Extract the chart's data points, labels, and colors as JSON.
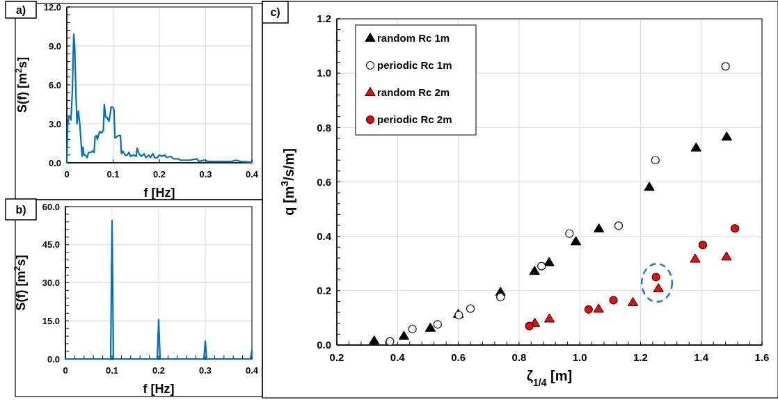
{
  "chart_data": [
    {
      "type": "line",
      "title": "a)",
      "xlabel": "f [Hz]",
      "ylabel": "S(f) [m$^{2}$s]",
      "xlim": [
        0,
        0.4
      ],
      "ylim": [
        0,
        12
      ],
      "grid": true,
      "marker": "none",
      "line_style": "solid",
      "xticks": [
        0,
        0.1,
        0.2,
        0.3,
        0.4
      ],
      "yticks": [
        {
          "value": 0,
          "label": "0.0"
        },
        {
          "value": 0.6,
          "label": null
        },
        {
          "value": 1.2,
          "label": null
        },
        {
          "value": 1.8,
          "label": null
        },
        {
          "value": 2.4,
          "label": null
        },
        {
          "value": 3,
          "label": "3.0"
        },
        {
          "value": 3.6,
          "label": null
        },
        {
          "value": 4.2,
          "label": null
        },
        {
          "value": 4.8,
          "label": null
        },
        {
          "value": 5.4,
          "label": null
        },
        {
          "value": 6,
          "label": "6.0"
        },
        {
          "value": 6.6,
          "label": null
        },
        {
          "value": 7.2,
          "label": null
        },
        {
          "value": 7.8,
          "label": null
        },
        {
          "value": 8.4,
          "label": null
        },
        {
          "value": 9,
          "label": "9.0"
        },
        {
          "value": 9.6,
          "label": null
        },
        {
          "value": 10.2,
          "label": null
        },
        {
          "value": 10.8,
          "label": null
        },
        {
          "value": 11.4,
          "label": null
        },
        {
          "value": 12,
          "label": "12.0"
        }
      ],
      "x": [
        0,
        0.002,
        0.005,
        0.008,
        0.009,
        0.012,
        0.015,
        0.017,
        0.02,
        0.022,
        0.025,
        0.028,
        0.031,
        0.033,
        0.035,
        0.037,
        0.04,
        0.044,
        0.047,
        0.052,
        0.055,
        0.059,
        0.061,
        0.064,
        0.066,
        0.069,
        0.071,
        0.075,
        0.079,
        0.081,
        0.084,
        0.087,
        0.091,
        0.094,
        0.096,
        0.099,
        0.102,
        0.104,
        0.108,
        0.112,
        0.116,
        0.118,
        0.121,
        0.126,
        0.131,
        0.134,
        0.138,
        0.144,
        0.15,
        0.152,
        0.156,
        0.161,
        0.167,
        0.171,
        0.177,
        0.181,
        0.186,
        0.19,
        0.196,
        0.2,
        0.206,
        0.212,
        0.216,
        0.224,
        0.231,
        0.241,
        0.246,
        0.256,
        0.266,
        0.281,
        0.286,
        0.296,
        0.306,
        0.326,
        0.356,
        0.366,
        0.376,
        0.4
      ],
      "series": [
        {
          "color": "#0070c0",
          "values": [
            0,
            3.0,
            3.6,
            3.5,
            3.3,
            5.5,
            9.9,
            9.0,
            5.0,
            3.0,
            4.0,
            3.0,
            1.5,
            0.5,
            1.2,
            0.6,
            0.6,
            0.4,
            0.8,
            0.8,
            0.9,
            0.8,
            2.0,
            2.1,
            1.8,
            2.2,
            2.4,
            2.3,
            2.5,
            4.5,
            3.5,
            3.5,
            3.2,
            3.8,
            4.3,
            4.3,
            4.1,
            1.9,
            2.0,
            2.1,
            2.1,
            0.7,
            0.9,
            0.6,
            0.6,
            0.8,
            0.5,
            0.6,
            0.5,
            1.1,
            0.7,
            0.5,
            0.7,
            0.4,
            0.6,
            0.4,
            0.7,
            0.4,
            0.4,
            0.6,
            0.5,
            0.6,
            0.4,
            0.5,
            0.3,
            0.3,
            0.2,
            0.2,
            0.2,
            0.3,
            0.1,
            0.2,
            0.1,
            0.1,
            0.1,
            0.2,
            0.1,
            0.05
          ]
        }
      ]
    },
    {
      "type": "line",
      "title": "b)",
      "xlabel": "f [Hz]",
      "ylabel": "S(f) [m$^{2}$s]",
      "xlim": [
        0,
        0.4
      ],
      "ylim": [
        0,
        60
      ],
      "grid": true,
      "marker": "none",
      "line_style": "solid",
      "xticks": [
        0,
        {
          "value": 0.02,
          "label": null
        },
        {
          "value": 0.04,
          "label": null
        },
        {
          "value": 0.06,
          "label": null
        },
        {
          "value": 0.08,
          "label": null
        },
        0.1,
        {
          "value": 0.12,
          "label": null
        },
        {
          "value": 0.14,
          "label": null
        },
        {
          "value": 0.16,
          "label": null
        },
        {
          "value": 0.18,
          "label": null
        },
        0.2,
        {
          "value": 0.22,
          "label": null
        },
        {
          "value": 0.24,
          "label": null
        },
        {
          "value": 0.26,
          "label": null
        },
        {
          "value": 0.28,
          "label": null
        },
        0.3,
        {
          "value": 0.32,
          "label": null
        },
        {
          "value": 0.34,
          "label": null
        },
        {
          "value": 0.36,
          "label": null
        },
        {
          "value": 0.38,
          "label": null
        },
        0.4
      ],
      "yticks": [
        {
          "value": 0,
          "label": "0.0"
        },
        {
          "value": 3,
          "label": null
        },
        {
          "value": 6,
          "label": null
        },
        {
          "value": 9,
          "label": null
        },
        {
          "value": 12,
          "label": null
        },
        {
          "value": 15,
          "label": "15.0"
        },
        {
          "value": 18,
          "label": null
        },
        {
          "value": 21,
          "label": null
        },
        {
          "value": 24,
          "label": null
        },
        {
          "value": 27,
          "label": null
        },
        {
          "value": 30,
          "label": "30.0"
        },
        {
          "value": 33,
          "label": null
        },
        {
          "value": 36,
          "label": null
        },
        {
          "value": 39,
          "label": null
        },
        {
          "value": 42,
          "label": null
        },
        {
          "value": 45,
          "label": "45.0"
        },
        {
          "value": 48,
          "label": null
        },
        {
          "value": 51,
          "label": null
        },
        {
          "value": 54,
          "label": null
        },
        {
          "value": 57,
          "label": null
        },
        {
          "value": 60,
          "label": "60.0"
        }
      ],
      "x": [
        0,
        0.097,
        0.1,
        0.103,
        0.197,
        0.2,
        0.203,
        0.297,
        0.3,
        0.303,
        0.397,
        0.4
      ],
      "series": [
        {
          "color": "#0070c0",
          "values": [
            0,
            0,
            54.5,
            0,
            0,
            15.5,
            0,
            0,
            7,
            0,
            0,
            3.5
          ]
        }
      ]
    },
    {
      "type": "scatter",
      "title": "c)",
      "xlabel": "ζ$_{1/4}$ [m]",
      "ylabel": "q [m$^{3}$/s/m]",
      "xlim": [
        0.2,
        1.6
      ],
      "ylim": [
        0,
        1.2
      ],
      "grid": true,
      "legend": "top left",
      "xticks": [
        0.2,
        {
          "value": 0.24,
          "label": null
        },
        {
          "value": 0.28,
          "label": null
        },
        {
          "value": 0.32,
          "label": null
        },
        {
          "value": 0.36,
          "label": null
        },
        0.4,
        {
          "value": 0.44,
          "label": null
        },
        {
          "value": 0.48,
          "label": null
        },
        {
          "value": 0.52,
          "label": null
        },
        {
          "value": 0.56,
          "label": null
        },
        0.6,
        {
          "value": 0.64,
          "label": null
        },
        {
          "value": 0.68,
          "label": null
        },
        {
          "value": 0.72,
          "label": null
        },
        {
          "value": 0.76,
          "label": null
        },
        0.8,
        {
          "value": 0.84,
          "label": null
        },
        {
          "value": 0.88,
          "label": null
        },
        {
          "value": 0.92,
          "label": null
        },
        {
          "value": 0.96,
          "label": null
        },
        {
          "value": 1,
          "label": "1.0"
        },
        {
          "value": 1.04,
          "label": null
        },
        {
          "value": 1.08,
          "label": null
        },
        {
          "value": 1.12,
          "label": null
        },
        {
          "value": 1.16,
          "label": null
        },
        1.2,
        {
          "value": 1.24,
          "label": null
        },
        {
          "value": 1.28,
          "label": null
        },
        {
          "value": 1.32,
          "label": null
        },
        {
          "value": 1.36,
          "label": null
        },
        1.4,
        {
          "value": 1.44,
          "label": null
        },
        {
          "value": 1.48,
          "label": null
        },
        {
          "value": 1.52,
          "label": null
        },
        {
          "value": 1.56,
          "label": null
        },
        1.6
      ],
      "yticks": [
        {
          "value": 0,
          "label": "0.0"
        },
        {
          "value": 0.04,
          "label": null
        },
        {
          "value": 0.08,
          "label": null
        },
        {
          "value": 0.12,
          "label": null
        },
        {
          "value": 0.16,
          "label": null
        },
        0.2,
        {
          "value": 0.24,
          "label": null
        },
        {
          "value": 0.28,
          "label": null
        },
        {
          "value": 0.32,
          "label": null
        },
        {
          "value": 0.36,
          "label": null
        },
        0.4,
        {
          "value": 0.44,
          "label": null
        },
        {
          "value": 0.48,
          "label": null
        },
        {
          "value": 0.52,
          "label": null
        },
        {
          "value": 0.56,
          "label": null
        },
        0.6,
        {
          "value": 0.64,
          "label": null
        },
        {
          "value": 0.68,
          "label": null
        },
        {
          "value": 0.72,
          "label": null
        },
        {
          "value": 0.76,
          "label": null
        },
        0.8,
        {
          "value": 0.84,
          "label": null
        },
        {
          "value": 0.88,
          "label": null
        },
        {
          "value": 0.92,
          "label": null
        },
        {
          "value": 0.96,
          "label": null
        },
        {
          "value": 1,
          "label": "1.0"
        },
        {
          "value": 1.04,
          "label": null
        },
        {
          "value": 1.08,
          "label": null
        },
        {
          "value": 1.12,
          "label": null
        },
        {
          "value": 1.16,
          "label": null
        },
        1.2
      ],
      "series": [
        {
          "name": "random Rc 1m",
          "color": "#000000",
          "marker": "triangle",
          "x": [
            0.323,
            0.421,
            0.508,
            0.6,
            0.739,
            0.851,
            0.899,
            0.987,
            1.063,
            1.229,
            1.383,
            1.484
          ],
          "values": [
            0.015,
            0.032,
            0.062,
            0.113,
            0.194,
            0.271,
            0.303,
            0.38,
            0.427,
            0.58,
            0.725,
            0.765
          ]
        },
        {
          "name": "periodic Rc 1m",
          "color": "#ffffff",
          "marker": "circle",
          "x": [
            0.375,
            0.449,
            0.532,
            0.602,
            0.64,
            0.739,
            0.874,
            0.966,
            1.128,
            1.249,
            1.48
          ],
          "values": [
            0.013,
            0.059,
            0.076,
            0.11,
            0.134,
            0.176,
            0.29,
            0.41,
            0.439,
            0.68,
            1.025
          ]
        },
        {
          "name": "random Rc 2m",
          "color": "#ff0000",
          "marker": "triangle",
          "x": [
            0.852,
            0.9,
            1.062,
            1.175,
            1.259,
            1.38,
            1.483
          ],
          "values": [
            0.08,
            0.096,
            0.132,
            0.156,
            0.207,
            0.316,
            0.324
          ]
        },
        {
          "name": "periodic Rc 2m",
          "color": "#ff0000",
          "marker": "circle",
          "x": [
            0.834,
            1.029,
            1.111,
            1.251,
            1.405,
            1.511
          ],
          "values": [
            0.07,
            0.131,
            0.165,
            0.25,
            0.368,
            0.429
          ]
        }
      ]
    }
  ]
}
